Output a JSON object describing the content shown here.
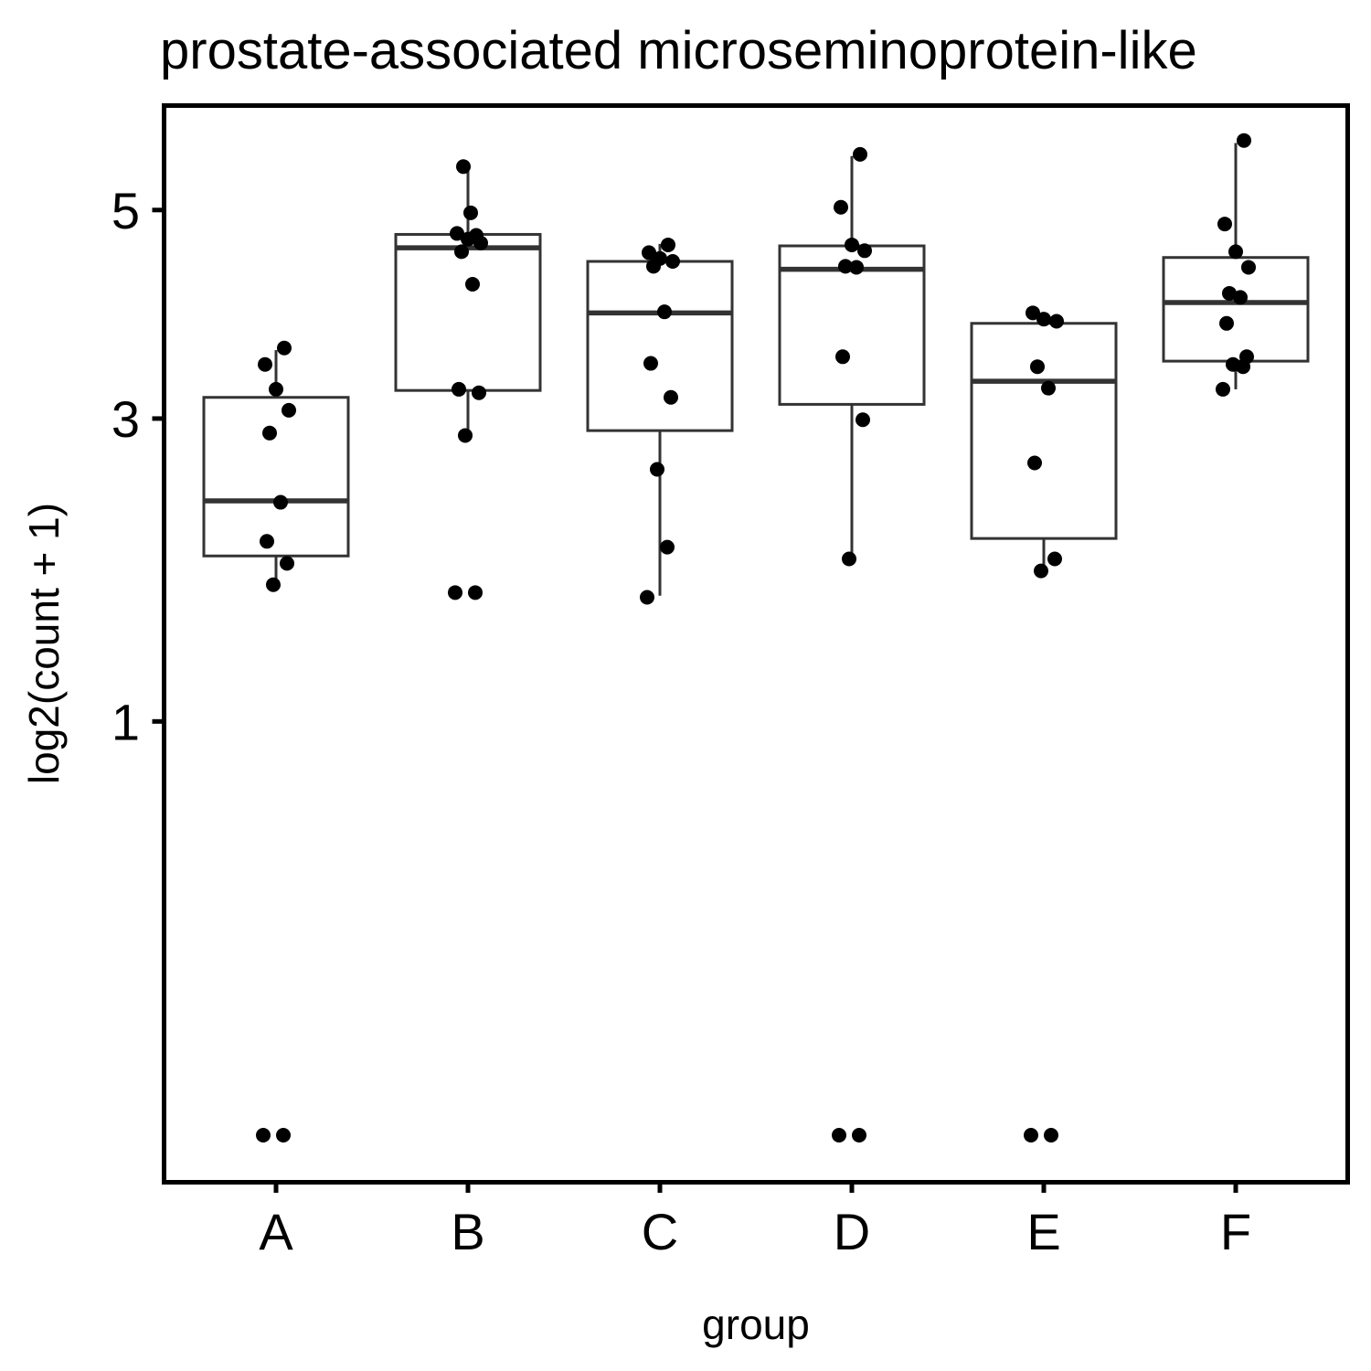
{
  "chart_data": {
    "type": "box",
    "title": "prostate-associated microseminoprotein-like",
    "xlabel": "group",
    "ylabel": "log2(count + 1)",
    "y_scale": "sqrt",
    "ylim": [
      0,
      5.65
    ],
    "y_ticks": [
      1,
      3,
      5
    ],
    "grid": false,
    "legend": "none",
    "categories": [
      "A",
      "B",
      "C",
      "D",
      "E",
      "F"
    ],
    "boxes": [
      {
        "group": "A",
        "whisker_low": 1.78,
        "q1": 1.96,
        "median": 2.35,
        "q3": 3.18,
        "whisker_high": 3.6
      },
      {
        "group": "B",
        "whisker_low": 2.83,
        "q1": 3.24,
        "median": 4.6,
        "q3": 4.74,
        "whisker_high": 5.48
      },
      {
        "group": "C",
        "whisker_low": 1.7,
        "q1": 2.9,
        "median": 3.95,
        "q3": 4.46,
        "whisker_high": 4.64
      },
      {
        "group": "D",
        "whisker_low": 1.95,
        "q1": 3.12,
        "median": 4.38,
        "q3": 4.62,
        "whisker_high": 5.6
      },
      {
        "group": "E",
        "whisker_low": 1.9,
        "q1": 2.08,
        "median": 3.32,
        "q3": 3.85,
        "whisker_high": 3.95
      },
      {
        "group": "F",
        "whisker_low": 3.25,
        "q1": 3.5,
        "median": 4.05,
        "q3": 4.5,
        "whisker_high": 5.75
      }
    ],
    "points": [
      {
        "group": "A",
        "values": [
          0,
          0,
          1.77,
          1.91,
          2.06,
          2.34,
          2.88,
          3.07,
          3.25,
          3.47,
          3.62
        ]
      },
      {
        "group": "B",
        "values": [
          1.72,
          1.72,
          2.86,
          3.22,
          3.25,
          4.23,
          4.56,
          4.65,
          4.69,
          4.75,
          4.73,
          4.97,
          5.48
        ]
      },
      {
        "group": "C",
        "values": [
          1.69,
          2.02,
          2.59,
          3.18,
          3.48,
          3.96,
          4.41,
          4.46,
          4.49,
          4.55,
          4.63
        ]
      },
      {
        "group": "D",
        "values": [
          0,
          0,
          1.94,
          2.99,
          3.54,
          4.4,
          4.41,
          4.57,
          4.63,
          5.03,
          5.62
        ]
      },
      {
        "group": "E",
        "values": [
          0,
          0,
          1.86,
          1.94,
          2.64,
          3.26,
          3.45,
          3.87,
          3.89,
          3.95
        ]
      },
      {
        "group": "F",
        "values": [
          3.25,
          3.45,
          3.47,
          3.54,
          3.85,
          4.1,
          4.14,
          4.4,
          4.56,
          4.85,
          5.78
        ]
      }
    ]
  }
}
